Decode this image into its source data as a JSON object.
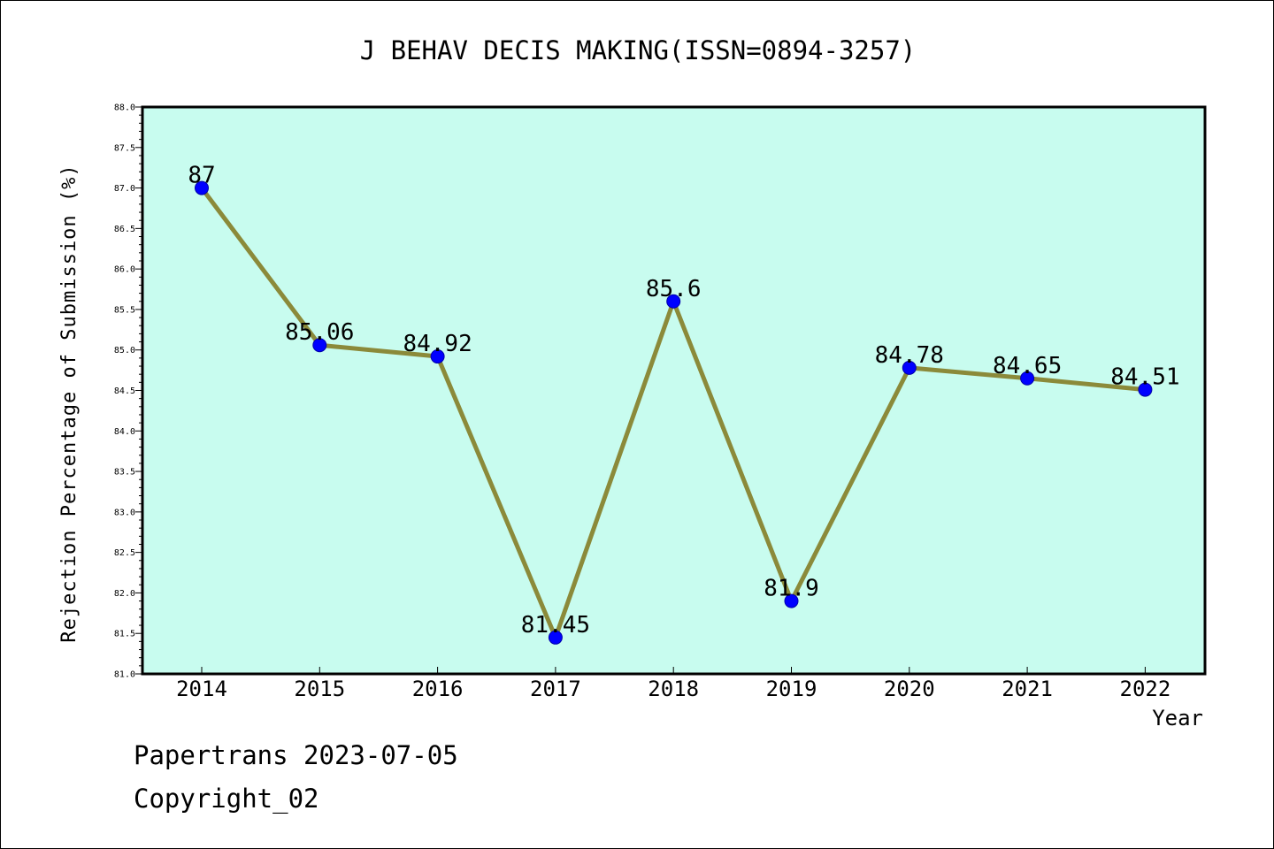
{
  "chart_data": {
    "type": "line",
    "title": "J BEHAV DECIS MAKING(ISSN=0894-3257)",
    "xlabel": "Year",
    "ylabel": "Rejection Percentage of Submission (%)",
    "categories": [
      "2014",
      "2015",
      "2016",
      "2017",
      "2018",
      "2019",
      "2020",
      "2021",
      "2022"
    ],
    "series": [
      {
        "values": [
          87,
          85.06,
          84.92,
          81.45,
          85.6,
          81.9,
          84.78,
          84.65,
          84.51
        ]
      }
    ],
    "data_labels": [
      "87",
      "85.06",
      "84.92",
      "81.45",
      "85.6",
      "81.9",
      "84.78",
      "84.65",
      "84.51"
    ],
    "ylim": [
      81.0,
      88.0
    ],
    "yticks": [
      "81.0",
      "81.5",
      "82.0",
      "82.5",
      "83.0",
      "83.5",
      "84.0",
      "84.5",
      "85.0",
      "85.5",
      "86.0",
      "86.5",
      "87.0",
      "87.5",
      "88.0"
    ],
    "grid": false,
    "legend": "none",
    "colors": {
      "plot_background": "#c8fcef",
      "line": "#8b8a3a",
      "marker": "#0000ff"
    }
  },
  "footer": {
    "line1": "Papertrans 2023-07-05",
    "line2": "Copyright_02"
  }
}
